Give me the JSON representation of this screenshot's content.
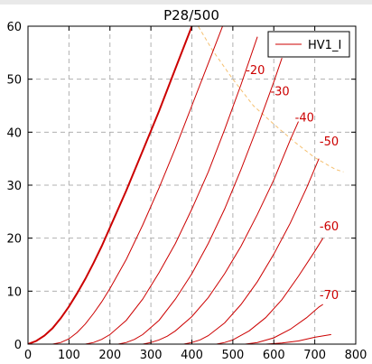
{
  "chart_data": {
    "type": "line",
    "title": "P28/500",
    "xlabel": "",
    "ylabel": "",
    "xlim": [
      0,
      800
    ],
    "ylim": [
      0,
      60
    ],
    "xticks": [
      0,
      100,
      200,
      300,
      400,
      500,
      600,
      700,
      800
    ],
    "yticks": [
      0,
      10,
      20,
      30,
      40,
      50,
      60
    ],
    "grid": true,
    "legend": {
      "position": "top-right",
      "entries": [
        "HV1_I"
      ]
    },
    "colors": {
      "curve": "#cc0000",
      "dissipation": "#f5c070",
      "grid": "#b0b0b0"
    },
    "series": [
      {
        "grid_voltage": "0",
        "label": "",
        "bold": true,
        "x": [
          0,
          20,
          40,
          60,
          80,
          100,
          120,
          140,
          160,
          180,
          200,
          240,
          280,
          320,
          360,
          400
        ],
        "y": [
          0,
          0.6,
          1.6,
          3.0,
          4.9,
          7.1,
          9.6,
          12.3,
          15.3,
          18.5,
          22.0,
          29.0,
          36.5,
          44.0,
          52.0,
          60.0
        ]
      },
      {
        "grid_voltage": "-10",
        "label": "",
        "x": [
          60,
          80,
          100,
          120,
          140,
          160,
          180,
          200,
          240,
          280,
          320,
          360,
          400,
          440,
          480
        ],
        "y": [
          0,
          0.3,
          1.0,
          2.2,
          3.8,
          5.8,
          8.0,
          10.5,
          16.0,
          22.5,
          29.5,
          37.0,
          45.0,
          53.0,
          61.0
        ]
      },
      {
        "grid_voltage": "-20",
        "label": "-20",
        "x": [
          140,
          160,
          180,
          200,
          240,
          280,
          320,
          360,
          400,
          440,
          480,
          520,
          560
        ],
        "y": [
          0,
          0.3,
          0.9,
          1.8,
          4.5,
          8.5,
          13.5,
          19.0,
          25.5,
          32.5,
          40.5,
          49.0,
          58.0
        ]
      },
      {
        "grid_voltage": "-30",
        "label": "-30",
        "x": [
          220,
          240,
          260,
          280,
          320,
          360,
          400,
          440,
          480,
          520,
          560,
          600,
          620
        ],
        "y": [
          0,
          0.3,
          0.9,
          1.8,
          4.5,
          8.5,
          13.3,
          19.0,
          25.5,
          33.0,
          41.0,
          49.5,
          54.0
        ]
      },
      {
        "grid_voltage": "-40",
        "label": "-40",
        "x": [
          280,
          300,
          320,
          340,
          360,
          400,
          440,
          480,
          520,
          560,
          600,
          640,
          660
        ],
        "y": [
          0,
          0.3,
          0.8,
          1.5,
          2.5,
          5.2,
          8.8,
          13.3,
          18.5,
          24.5,
          31.0,
          38.5,
          42.0
        ]
      },
      {
        "grid_voltage": "-50",
        "label": "-50",
        "x": [
          380,
          400,
          420,
          440,
          480,
          520,
          560,
          600,
          640,
          680,
          710
        ],
        "y": [
          0,
          0.3,
          0.8,
          1.6,
          4.0,
          7.5,
          11.8,
          17.0,
          22.8,
          29.5,
          35.0
        ]
      },
      {
        "grid_voltage": "-60",
        "label": "-60",
        "x": [
          460,
          480,
          500,
          540,
          580,
          620,
          660,
          700,
          720
        ],
        "y": [
          0,
          0.3,
          0.8,
          2.5,
          5.0,
          8.4,
          12.8,
          17.5,
          20.0
        ]
      },
      {
        "grid_voltage": "-70",
        "label": "-70",
        "x": [
          530,
          560,
          600,
          640,
          680,
          710,
          720
        ],
        "y": [
          0,
          0.3,
          1.2,
          2.8,
          5.0,
          7.0,
          7.5
        ]
      },
      {
        "grid_voltage": "-80",
        "label": "",
        "x": [
          580,
          620,
          660,
          700,
          740
        ],
        "y": [
          0,
          0.2,
          0.6,
          1.3,
          1.8
        ]
      }
    ],
    "dissipation_curve": {
      "x": [
        400,
        450,
        500,
        550,
        600,
        650,
        700,
        750,
        770
      ],
      "y": [
        62.0,
        55.5,
        50.0,
        45.0,
        41.5,
        38.2,
        35.2,
        33.0,
        32.5
      ]
    },
    "curve_labels": [
      {
        "text": "-20",
        "x": 555,
        "y": 51
      },
      {
        "text": "-30",
        "x": 615,
        "y": 47
      },
      {
        "text": "-40",
        "x": 675,
        "y": 42
      },
      {
        "text": "-50",
        "x": 735,
        "y": 37.5
      },
      {
        "text": "-60",
        "x": 735,
        "y": 21.5
      },
      {
        "text": "-70",
        "x": 735,
        "y": 8.5
      }
    ]
  }
}
